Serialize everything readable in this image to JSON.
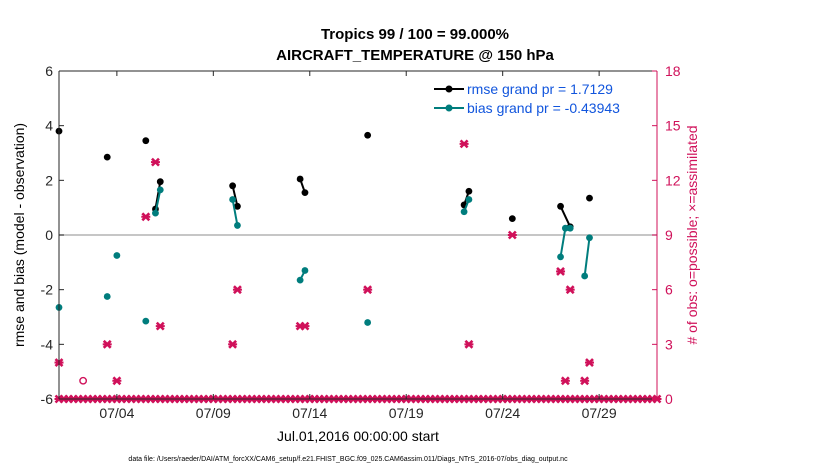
{
  "chart_data": {
    "type": "scatter",
    "title": "Tropics 99 / 100 = 99.000%",
    "subtitle": "AIRCRAFT_TEMPERATURE @ 150 hPa",
    "xlabel": "Jul.01,2016 00:00:00 start",
    "ylabel": "rmse and bias (model - observation)",
    "y2label": "# of obs: o=possible; ×=assimilated",
    "xlim": [
      1,
      32
    ],
    "ylim": [
      -6,
      6
    ],
    "y2lim": [
      0,
      18
    ],
    "x_ticks": [
      4,
      9,
      14,
      19,
      24,
      29
    ],
    "x_tick_labels": [
      "07/04",
      "07/09",
      "07/14",
      "07/19",
      "07/24",
      "07/29"
    ],
    "y_ticks": [
      -6,
      -4,
      -2,
      0,
      2,
      4,
      6
    ],
    "y_tick_labels": [
      "-6",
      "-4",
      "-2",
      "0",
      "2",
      "4",
      "6"
    ],
    "y2_ticks": [
      0,
      3,
      6,
      9,
      12,
      15,
      18
    ],
    "y2_tick_labels": [
      "0",
      "3",
      "6",
      "9",
      "12",
      "15",
      "18"
    ],
    "zero_line": 0,
    "series": [
      {
        "name": "rmse grand pr = 1.7129",
        "axis": "left",
        "color": "#000000",
        "points": [
          [
            1.0,
            3.8
          ],
          [
            3.5,
            2.85
          ],
          [
            5.5,
            3.45
          ],
          [
            6.0,
            0.95
          ],
          [
            6.25,
            1.95
          ],
          [
            10.0,
            1.8
          ],
          [
            10.25,
            1.05
          ],
          [
            13.5,
            2.05
          ],
          [
            13.75,
            1.55
          ],
          [
            17.0,
            3.65
          ],
          [
            22.0,
            1.1
          ],
          [
            22.25,
            1.6
          ],
          [
            24.5,
            0.6
          ],
          [
            27.0,
            1.05
          ],
          [
            27.5,
            0.3
          ],
          [
            28.5,
            1.35
          ]
        ],
        "segments": [
          [
            [
              6.0,
              0.95
            ],
            [
              6.25,
              1.95
            ]
          ],
          [
            [
              10.0,
              1.8
            ],
            [
              10.25,
              1.05
            ]
          ],
          [
            [
              13.5,
              2.05
            ],
            [
              13.75,
              1.55
            ]
          ],
          [
            [
              22.0,
              1.1
            ],
            [
              22.25,
              1.6
            ]
          ],
          [
            [
              27.0,
              1.05
            ],
            [
              27.5,
              0.3
            ]
          ]
        ]
      },
      {
        "name": "bias grand pr = -0.43943",
        "axis": "left",
        "color": "#007d7d",
        "points": [
          [
            1.0,
            -2.65
          ],
          [
            3.5,
            -2.25
          ],
          [
            4.0,
            -0.75
          ],
          [
            5.5,
            -3.15
          ],
          [
            6.0,
            0.8
          ],
          [
            6.25,
            1.65
          ],
          [
            10.0,
            1.3
          ],
          [
            10.25,
            0.35
          ],
          [
            13.5,
            -1.65
          ],
          [
            13.75,
            -1.3
          ],
          [
            17.0,
            -3.2
          ],
          [
            22.0,
            0.85
          ],
          [
            22.25,
            1.3
          ],
          [
            27.0,
            -0.8
          ],
          [
            27.25,
            0.25
          ],
          [
            27.5,
            0.25
          ],
          [
            28.25,
            -1.5
          ],
          [
            28.5,
            -0.1
          ]
        ],
        "segments": [
          [
            [
              6.0,
              0.8
            ],
            [
              6.25,
              1.65
            ]
          ],
          [
            [
              10.0,
              1.3
            ],
            [
              10.25,
              0.35
            ]
          ],
          [
            [
              13.5,
              -1.65
            ],
            [
              13.75,
              -1.3
            ]
          ],
          [
            [
              22.0,
              0.85
            ],
            [
              22.25,
              1.3
            ]
          ],
          [
            [
              27.0,
              -0.8
            ],
            [
              27.25,
              0.25
            ],
            [
              27.5,
              0.25
            ]
          ],
          [
            [
              28.25,
              -1.5
            ],
            [
              28.5,
              -0.1
            ]
          ]
        ]
      },
      {
        "name": "obs possible",
        "axis": "right",
        "color": "#d0115a",
        "marker": "circle",
        "points": [
          [
            2.25,
            1
          ]
        ]
      },
      {
        "name": "obs assimilated",
        "axis": "right",
        "color": "#d0115a",
        "marker": "x",
        "points": [
          [
            1.0,
            2
          ],
          [
            3.5,
            3
          ],
          [
            4.0,
            1
          ],
          [
            5.5,
            10
          ],
          [
            6.0,
            13
          ],
          [
            6.25,
            4
          ],
          [
            10.0,
            3
          ],
          [
            10.25,
            6
          ],
          [
            13.5,
            4
          ],
          [
            13.75,
            4
          ],
          [
            17.0,
            6
          ],
          [
            22.0,
            14
          ],
          [
            22.25,
            3
          ],
          [
            24.5,
            9
          ],
          [
            27.0,
            7
          ],
          [
            27.25,
            1
          ],
          [
            27.5,
            6
          ],
          [
            28.25,
            1
          ],
          [
            28.5,
            2
          ]
        ]
      }
    ],
    "zero_obs_marker_x_range": [
      1.0,
      32.0
    ],
    "zero_obs_marker_step": 0.25,
    "legend": [
      "rmse grand pr = 1.7129",
      "bias grand pr = -0.43943"
    ],
    "legend_position": "top-right",
    "footer": "data file: /Users/raeder/DAI/ATM_forcXX/CAM6_setup/f.e21.FHIST_BGC.f09_025.CAM6assim.011/Diags_NTrS_2016-07/obs_diag_output.nc"
  }
}
